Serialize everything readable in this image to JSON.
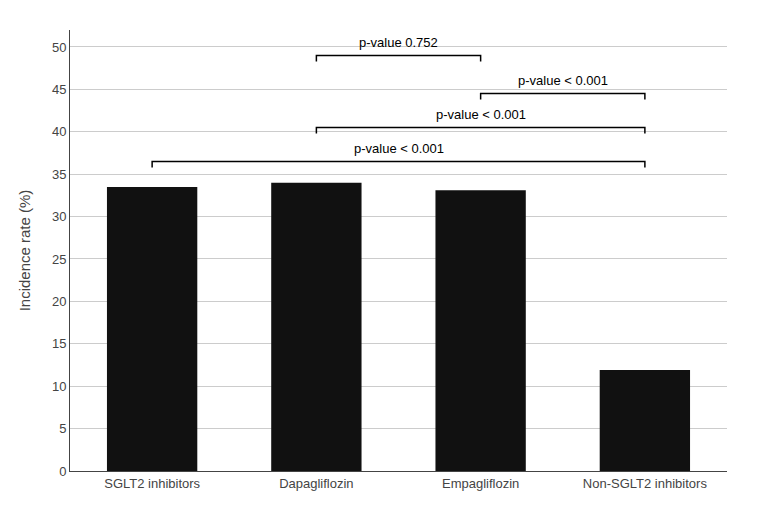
{
  "chart_data": {
    "type": "bar",
    "categories": [
      "SGLT2 inhibitors",
      "Dapagliflozin",
      "Empagliflozin",
      "Non-SGLT2 inhibitors"
    ],
    "values": [
      33.5,
      34.0,
      33.1,
      11.9
    ],
    "color": "#111111",
    "ylabel": "Incidence rate (%)",
    "ylim": [
      0,
      52
    ],
    "yticks": [
      0,
      5,
      10,
      15,
      20,
      25,
      30,
      35,
      40,
      45,
      50
    ],
    "grid": true,
    "brackets": [
      {
        "from": "Dapagliflozin",
        "to": "Empagliflozin",
        "y": 49.0,
        "label": "p-value 0.752"
      },
      {
        "from": "SGLT2 inhibitors",
        "to": "Non-SGLT2 inhibitors",
        "y": 36.5,
        "label": "p-value < 0.001"
      },
      {
        "from": "Dapagliflozin",
        "to": "Non-SGLT2 inhibitors",
        "y": 40.5,
        "label": "p-value < 0.001"
      },
      {
        "from": "Empagliflozin",
        "to": "Non-SGLT2 inhibitors",
        "y": 44.5,
        "label": "p-value < 0.001"
      }
    ]
  }
}
